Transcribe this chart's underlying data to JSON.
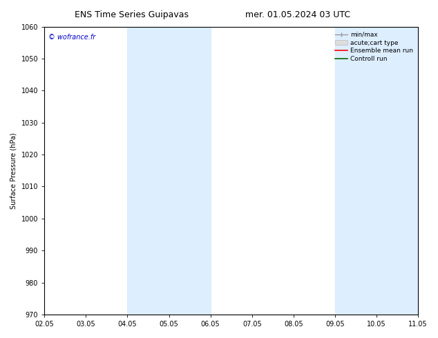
{
  "title_left": "ENS Time Series Guipavas",
  "title_right": "mer. 01.05.2024 03 UTC",
  "ylabel": "Surface Pressure (hPa)",
  "ylim": [
    970,
    1060
  ],
  "yticks": [
    970,
    980,
    990,
    1000,
    1010,
    1020,
    1030,
    1040,
    1050,
    1060
  ],
  "xlim_start": 0,
  "xlim_end": 9,
  "xtick_labels": [
    "02.05",
    "03.05",
    "04.05",
    "05.05",
    "06.05",
    "07.05",
    "08.05",
    "09.05",
    "10.05",
    "11.05"
  ],
  "xtick_positions": [
    0,
    1,
    2,
    3,
    4,
    5,
    6,
    7,
    8,
    9
  ],
  "shaded_bands": [
    {
      "x_start": 2,
      "x_end": 4,
      "color": "#ddeeff"
    },
    {
      "x_start": 7,
      "x_end": 9,
      "color": "#ddeeff"
    }
  ],
  "watermark_text": "© wofrance.fr",
  "watermark_color": "#0000cc",
  "bg_color": "#ffffff",
  "title_fontsize": 9,
  "axis_fontsize": 7,
  "tick_fontsize": 7,
  "legend_fontsize": 6.5
}
